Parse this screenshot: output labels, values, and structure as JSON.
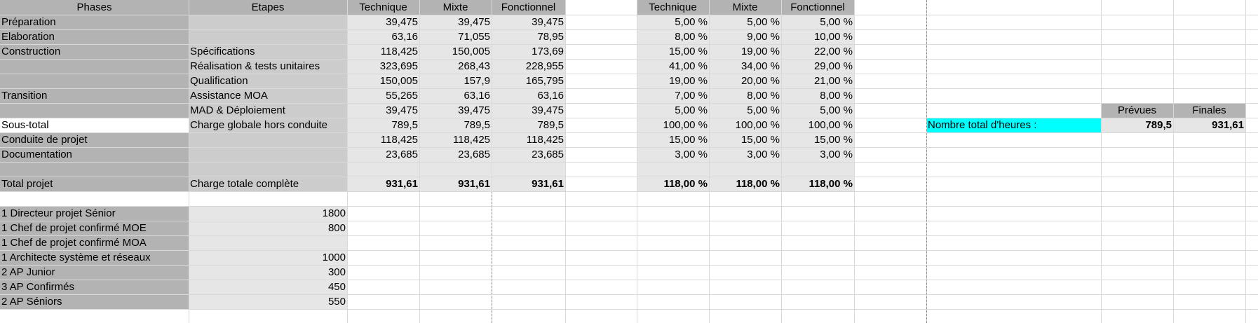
{
  "table1": {
    "headers": {
      "phases": "Phases",
      "etapes": "Etapes",
      "technique": "Technique",
      "mixte": "Mixte",
      "fonctionnel": "Fonctionnel"
    },
    "rows": [
      {
        "phase": "Préparation",
        "etape": "",
        "t": "39,475",
        "m": "39,475",
        "f": "39,475",
        "bold": false
      },
      {
        "phase": "Elaboration",
        "etape": "",
        "t": "63,16",
        "m": "71,055",
        "f": "78,95",
        "bold": false
      },
      {
        "phase": "Construction",
        "etape": "Spécifications",
        "t": "118,425",
        "m": "150,005",
        "f": "173,69",
        "bold": false
      },
      {
        "phase": "",
        "etape": "Réalisation & tests unitaires",
        "t": "323,695",
        "m": "268,43",
        "f": "228,955",
        "bold": false
      },
      {
        "phase": "",
        "etape": "Qualification",
        "t": "150,005",
        "m": "157,9",
        "f": "165,795",
        "bold": false
      },
      {
        "phase": "Transition",
        "etape": "Assistance MOA",
        "t": "55,265",
        "m": "63,16",
        "f": "63,16",
        "bold": false
      },
      {
        "phase": "",
        "etape": "MAD & Déploiement",
        "t": "39,475",
        "m": "39,475",
        "f": "39,475",
        "bold": false
      },
      {
        "phase": "Sous-total",
        "etape": "Charge globale hors conduite",
        "t": "789,5",
        "m": "789,5",
        "f": "789,5",
        "bold": false
      },
      {
        "phase": "Conduite de projet",
        "etape": "",
        "t": "118,425",
        "m": "118,425",
        "f": "118,425",
        "bold": false
      },
      {
        "phase": "Documentation",
        "etape": "",
        "t": "23,685",
        "m": "23,685",
        "f": "23,685",
        "bold": false
      },
      {
        "phase": "",
        "etape": "",
        "t": "",
        "m": "",
        "f": "",
        "bold": false
      },
      {
        "phase": "Total projet",
        "etape": "Charge totale complète",
        "t": "931,61",
        "m": "931,61",
        "f": "931,61",
        "bold": true
      }
    ]
  },
  "table2": {
    "headers": {
      "technique": "Technique",
      "mixte": "Mixte",
      "fonctionnel": "Fonctionnel"
    },
    "rows": [
      {
        "t": "5,00 %",
        "m": "5,00 %",
        "f": "5,00 %"
      },
      {
        "t": "8,00 %",
        "m": "9,00 %",
        "f": "10,00 %"
      },
      {
        "t": "15,00 %",
        "m": "19,00 %",
        "f": "22,00 %"
      },
      {
        "t": "41,00 %",
        "m": "34,00 %",
        "f": "29,00 %"
      },
      {
        "t": "19,00 %",
        "m": "20,00 %",
        "f": "21,00 %"
      },
      {
        "t": "7,00 %",
        "m": "8,00 %",
        "f": "8,00 %"
      },
      {
        "t": "5,00 %",
        "m": "5,00 %",
        "f": "5,00 %"
      },
      {
        "t": "100,00 %",
        "m": "100,00 %",
        "f": "100,00 %"
      },
      {
        "t": "15,00 %",
        "m": "15,00 %",
        "f": "15,00 %"
      },
      {
        "t": "3,00 %",
        "m": "3,00 %",
        "f": "3,00 %"
      },
      {
        "t": "",
        "m": "",
        "f": ""
      },
      {
        "t": "118,00 %",
        "m": "118,00 %",
        "f": "118,00 %"
      }
    ]
  },
  "hours": {
    "label": "Nombre total d'heures :",
    "header_prevues": "Prévues",
    "header_finales": "Finales",
    "prevues": "789,5",
    "finales": "931,61"
  },
  "resources": [
    {
      "name": "1 Directeur projet Sénior",
      "value": "1800"
    },
    {
      "name": "1 Chef de projet confirmé MOE",
      "value": "800"
    },
    {
      "name": "1 Chef de projet confirmé MOA",
      "value": ""
    },
    {
      "name": "1 Architecte système et réseaux",
      "value": "1000"
    },
    {
      "name": "2 AP Junior",
      "value": "300"
    },
    {
      "name": "3 AP Confirmés",
      "value": "450"
    },
    {
      "name": "2 AP Séniors",
      "value": "550"
    }
  ],
  "colors": {
    "dark": "#b3b3b3",
    "light": "#cccccc",
    "pale": "#e6e6e6",
    "cyan": "#00ffff"
  }
}
